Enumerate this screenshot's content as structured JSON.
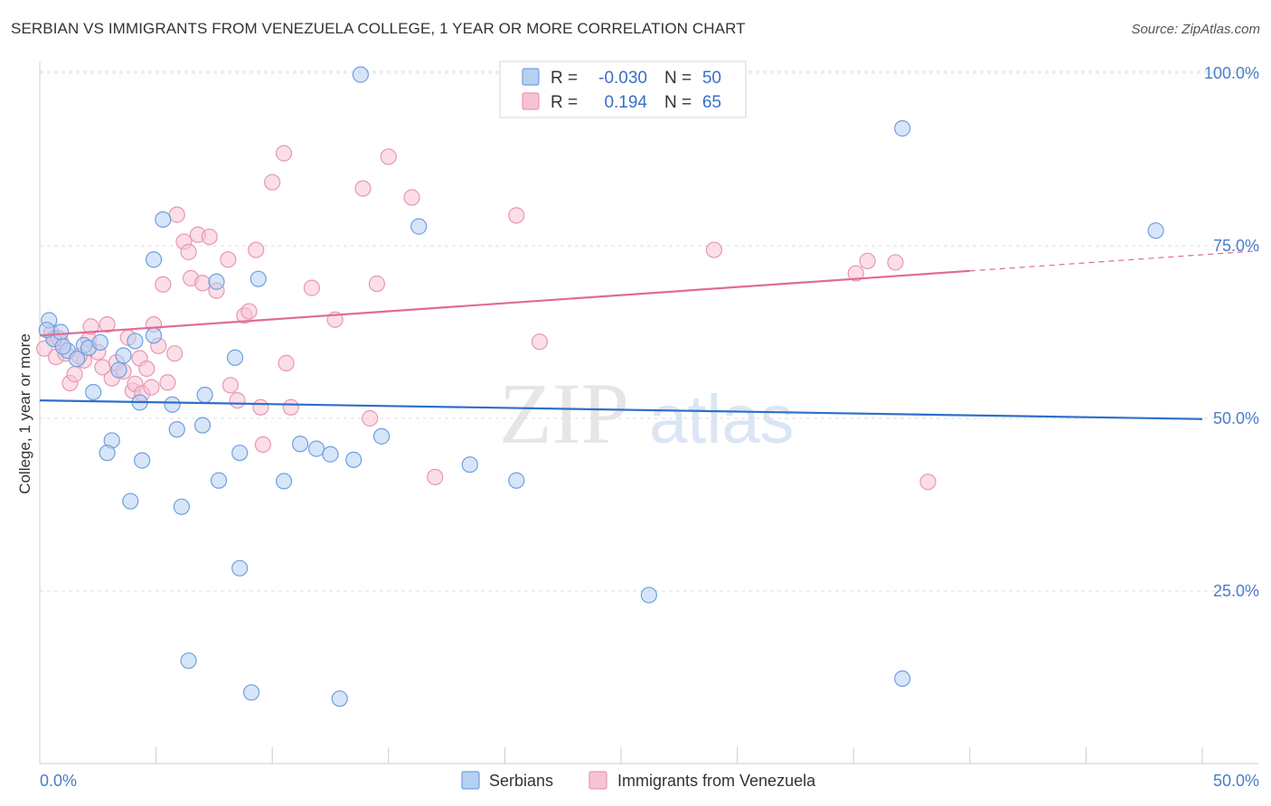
{
  "title": "SERBIAN VS IMMIGRANTS FROM VENEZUELA COLLEGE, 1 YEAR OR MORE CORRELATION CHART",
  "source": "Source: ZipAtlas.com",
  "watermark": {
    "zip": "ZIP",
    "atlas": "atlas"
  },
  "colors": {
    "blue_fill": "#b7d0f2",
    "blue_stroke": "#6f9fe0",
    "blue_line": "#2f6fca",
    "pink_fill": "#f7c3d4",
    "pink_stroke": "#e897b2",
    "pink_line": "#e06b95",
    "grid": "#dddddd",
    "tick_label": "#4a7cc9"
  },
  "legend": {
    "r_label": "R =",
    "n_label": "N =",
    "series": [
      {
        "name": "Serbians",
        "r": "-0.030",
        "n": "50"
      },
      {
        "name": "Immigrants from Venezuela",
        "r": "0.194",
        "n": "65"
      }
    ]
  },
  "chart_data": {
    "type": "scatter",
    "title": "SERBIAN VS IMMIGRANTS FROM VENEZUELA COLLEGE, 1 YEAR OR MORE CORRELATION CHART",
    "xlabel": "",
    "ylabel": "College, 1 year or more",
    "xlim": [
      0,
      50
    ],
    "ylim": [
      0,
      105
    ],
    "x_tick_labels": [
      "0.0%",
      "50.0%"
    ],
    "y_ticks": [
      25,
      50,
      75,
      100
    ],
    "y_tick_labels": [
      "25.0%",
      "50.0%",
      "75.0%",
      "100.0%"
    ],
    "grid": true,
    "legend_position": "top-center",
    "series": [
      {
        "name": "Serbians",
        "trend": {
          "x0": 0,
          "y0": 52.6,
          "x1": 50,
          "y1": 49.9
        },
        "points": [
          [
            0.4,
            64.2
          ],
          [
            0.6,
            61.5
          ],
          [
            0.9,
            62.5
          ],
          [
            1.2,
            59.8
          ],
          [
            1.6,
            58.6
          ],
          [
            1.9,
            60.6
          ],
          [
            2.1,
            60.2
          ],
          [
            2.6,
            61.0
          ],
          [
            2.3,
            53.8
          ],
          [
            3.1,
            46.8
          ],
          [
            2.9,
            45.0
          ],
          [
            3.4,
            57.0
          ],
          [
            3.6,
            59.1
          ],
          [
            4.1,
            61.2
          ],
          [
            4.3,
            52.3
          ],
          [
            4.4,
            43.9
          ],
          [
            3.9,
            38.0
          ],
          [
            4.9,
            62.0
          ],
          [
            4.9,
            73.0
          ],
          [
            5.3,
            78.8
          ],
          [
            5.7,
            52.0
          ],
          [
            5.9,
            48.4
          ],
          [
            6.1,
            37.2
          ],
          [
            7.0,
            49.0
          ],
          [
            7.1,
            53.4
          ],
          [
            7.6,
            69.8
          ],
          [
            7.7,
            41.0
          ],
          [
            8.4,
            58.8
          ],
          [
            8.6,
            45.0
          ],
          [
            8.6,
            28.3
          ],
          [
            9.1,
            10.3
          ],
          [
            9.4,
            70.2
          ],
          [
            10.5,
            40.9
          ],
          [
            11.2,
            46.3
          ],
          [
            11.9,
            45.6
          ],
          [
            12.5,
            44.8
          ],
          [
            12.9,
            9.4
          ],
          [
            13.5,
            44.0
          ],
          [
            13.8,
            99.8
          ],
          [
            14.7,
            47.4
          ],
          [
            16.3,
            77.8
          ],
          [
            18.5,
            43.3
          ],
          [
            20.5,
            41.0
          ],
          [
            6.4,
            14.9
          ],
          [
            26.2,
            24.4
          ],
          [
            37.1,
            92.0
          ],
          [
            37.1,
            12.3
          ],
          [
            48.0,
            77.2
          ],
          [
            1.0,
            60.4
          ],
          [
            0.3,
            62.8
          ]
        ]
      },
      {
        "name": "Immigrants from Venezuela",
        "trend": {
          "x0": 0,
          "y0": 62.0,
          "x1": 50,
          "y1": 73.7,
          "solid_until_x": 40
        },
        "points": [
          [
            0.2,
            60.1
          ],
          [
            0.5,
            62.4
          ],
          [
            0.7,
            58.9
          ],
          [
            0.9,
            61.1
          ],
          [
            1.1,
            59.4
          ],
          [
            1.3,
            55.1
          ],
          [
            1.5,
            56.4
          ],
          [
            1.9,
            58.4
          ],
          [
            2.1,
            61.4
          ],
          [
            2.2,
            63.3
          ],
          [
            2.5,
            59.6
          ],
          [
            2.7,
            57.4
          ],
          [
            2.9,
            63.6
          ],
          [
            3.1,
            55.8
          ],
          [
            3.3,
            58.1
          ],
          [
            3.6,
            56.8
          ],
          [
            3.8,
            61.7
          ],
          [
            4.0,
            54.0
          ],
          [
            4.1,
            55.0
          ],
          [
            4.3,
            58.7
          ],
          [
            4.4,
            53.6
          ],
          [
            4.6,
            57.2
          ],
          [
            4.8,
            54.5
          ],
          [
            4.9,
            63.6
          ],
          [
            5.1,
            60.5
          ],
          [
            5.3,
            69.4
          ],
          [
            5.5,
            55.2
          ],
          [
            5.8,
            59.4
          ],
          [
            5.9,
            79.5
          ],
          [
            6.2,
            75.6
          ],
          [
            6.4,
            74.1
          ],
          [
            6.5,
            70.3
          ],
          [
            6.8,
            76.6
          ],
          [
            7.0,
            69.6
          ],
          [
            7.3,
            76.3
          ],
          [
            7.6,
            68.5
          ],
          [
            8.1,
            73.0
          ],
          [
            8.2,
            54.8
          ],
          [
            8.5,
            52.6
          ],
          [
            8.8,
            64.9
          ],
          [
            9.0,
            65.5
          ],
          [
            9.3,
            74.4
          ],
          [
            9.5,
            51.6
          ],
          [
            9.6,
            46.2
          ],
          [
            10.0,
            84.2
          ],
          [
            10.5,
            88.4
          ],
          [
            10.6,
            58.0
          ],
          [
            10.8,
            51.6
          ],
          [
            11.7,
            68.9
          ],
          [
            12.7,
            64.3
          ],
          [
            13.9,
            83.3
          ],
          [
            14.2,
            50.0
          ],
          [
            14.5,
            69.5
          ],
          [
            15.0,
            87.9
          ],
          [
            16.0,
            82.0
          ],
          [
            17.0,
            41.5
          ],
          [
            20.5,
            79.4
          ],
          [
            21.5,
            61.1
          ],
          [
            29.0,
            74.4
          ],
          [
            35.1,
            71.0
          ],
          [
            35.6,
            72.8
          ],
          [
            36.8,
            72.6
          ],
          [
            38.2,
            40.8
          ],
          [
            0.8,
            61.6
          ],
          [
            1.7,
            59.0
          ]
        ]
      }
    ]
  },
  "bottom_legend": [
    "Serbians",
    "Immigrants from Venezuela"
  ]
}
